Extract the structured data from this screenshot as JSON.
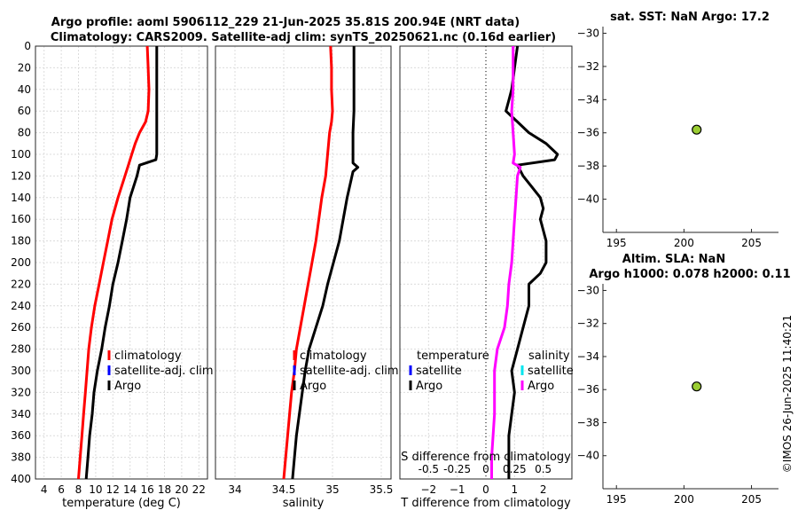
{
  "header": {
    "title_line1": "Argo profile: aoml 5906112_229 21-Jun-2025 35.81S 200.94E (NRT data)",
    "title_line2": "Climatology: CARS2009. Satellite-adj clim: synTS_20250621.nc (0.16d earlier)",
    "sst_title": "sat. SST: NaN Argo: 17.2",
    "sla_title1": "Altim. SLA: NaN",
    "sla_title2": "Argo h1000: 0.078 h2000: 0.11",
    "credit": "©IMOS 26-Jun-2025 11:40:21"
  },
  "colors": {
    "climatology": "#ff0000",
    "satellite": "#0000ff",
    "argo": "#000000",
    "salinity_diff": "#ff00ff",
    "salinity_sat": "#00e5ee",
    "marker": "#9acd32"
  },
  "chart_data": [
    {
      "type": "line",
      "id": "temperature",
      "xlabel": "temperature (deg C)",
      "xlim": [
        3,
        23
      ],
      "ylim": [
        400,
        0
      ],
      "xticks": [
        4,
        6,
        8,
        10,
        12,
        14,
        16,
        18,
        20,
        22
      ],
      "yticks": [
        0,
        20,
        40,
        60,
        80,
        100,
        120,
        140,
        160,
        180,
        200,
        220,
        240,
        260,
        280,
        300,
        320,
        340,
        360,
        380,
        400
      ],
      "legend": [
        "climatology",
        "satellite-adj. clim",
        "Argo"
      ],
      "series": [
        {
          "name": "climatology",
          "depth": [
            0,
            20,
            40,
            60,
            70,
            80,
            90,
            100,
            110,
            120,
            140,
            160,
            180,
            200,
            220,
            240,
            260,
            280,
            300,
            320,
            340,
            360,
            380,
            400
          ],
          "values": [
            16.0,
            16.1,
            16.2,
            16.1,
            15.8,
            15.1,
            14.6,
            14.2,
            13.8,
            13.4,
            12.6,
            11.9,
            11.4,
            10.9,
            10.4,
            9.9,
            9.5,
            9.2,
            9.0,
            8.8,
            8.6,
            8.4,
            8.2,
            8.0
          ]
        },
        {
          "name": "Argo",
          "depth": [
            0,
            20,
            40,
            60,
            80,
            100,
            105,
            110,
            120,
            140,
            160,
            180,
            200,
            220,
            240,
            260,
            280,
            300,
            320,
            340,
            360,
            380,
            400
          ],
          "values": [
            17.1,
            17.1,
            17.1,
            17.1,
            17.1,
            17.1,
            17.0,
            15.1,
            14.8,
            14.0,
            13.6,
            13.1,
            12.6,
            12.0,
            11.6,
            11.1,
            10.7,
            10.2,
            9.8,
            9.6,
            9.3,
            9.1,
            8.9
          ]
        }
      ]
    },
    {
      "type": "line",
      "id": "salinity",
      "xlabel": "salinity",
      "xlim": [
        33.8,
        35.6
      ],
      "ylim": [
        400,
        0
      ],
      "xticks": [
        34,
        34.5,
        35,
        35.5
      ],
      "xticklabels": [
        "34",
        "34.5",
        "35",
        "35.5"
      ],
      "legend": [
        "climatology",
        "satellite-adj. clim",
        "Argo"
      ],
      "series": [
        {
          "name": "climatology",
          "depth": [
            0,
            20,
            40,
            60,
            70,
            80,
            100,
            120,
            140,
            160,
            180,
            200,
            220,
            240,
            260,
            280,
            300,
            320,
            340,
            360,
            380,
            400
          ],
          "values": [
            34.98,
            34.99,
            34.99,
            35.0,
            34.99,
            34.97,
            34.95,
            34.93,
            34.89,
            34.86,
            34.83,
            34.79,
            34.75,
            34.71,
            34.67,
            34.63,
            34.61,
            34.58,
            34.56,
            34.54,
            34.52,
            34.5
          ]
        },
        {
          "name": "Argo",
          "depth": [
            0,
            20,
            40,
            60,
            80,
            100,
            108,
            112,
            116,
            120,
            140,
            160,
            180,
            200,
            220,
            240,
            260,
            280,
            300,
            320,
            340,
            360,
            380,
            400
          ],
          "values": [
            35.22,
            35.22,
            35.22,
            35.22,
            35.21,
            35.21,
            35.21,
            35.26,
            35.21,
            35.2,
            35.15,
            35.11,
            35.07,
            35.01,
            34.95,
            34.9,
            34.83,
            34.76,
            34.72,
            34.69,
            34.66,
            34.63,
            34.61,
            34.59
          ]
        }
      ]
    },
    {
      "type": "line",
      "id": "difference",
      "xlabel": "T difference from climatology",
      "xlabel_top": "S difference from climatology",
      "xlim": [
        -3,
        3
      ],
      "ylim": [
        400,
        0
      ],
      "xticks": [
        -2,
        -1,
        0,
        1,
        2
      ],
      "top_xtick_values": [
        -2,
        -1,
        0,
        1,
        2
      ],
      "top_xticklabels": [
        "-0.5",
        "-0.25",
        "0",
        "0.25",
        "0.5"
      ],
      "legend": [
        "temperature",
        "satellite",
        "Argo",
        "salinity",
        "satellite",
        "Argo"
      ],
      "series": [
        {
          "name": "temperature Argo",
          "depth": [
            0,
            20,
            40,
            50,
            60,
            70,
            80,
            90,
            100,
            105,
            110,
            120,
            130,
            140,
            150,
            160,
            180,
            200,
            210,
            220,
            240,
            260,
            280,
            300,
            320,
            340,
            360,
            380,
            400
          ],
          "values": [
            1.1,
            1.0,
            0.9,
            0.8,
            0.7,
            1.1,
            1.5,
            2.1,
            2.5,
            2.4,
            1.1,
            1.3,
            1.6,
            1.9,
            2.0,
            1.9,
            2.1,
            2.1,
            1.9,
            1.5,
            1.5,
            1.3,
            1.1,
            0.9,
            1.0,
            0.9,
            0.8,
            0.8,
            0.8
          ]
        },
        {
          "name": "salinity Argo",
          "depth": [
            0,
            20,
            40,
            60,
            80,
            100,
            108,
            112,
            120,
            140,
            160,
            180,
            200,
            220,
            240,
            260,
            280,
            300,
            320,
            340,
            360,
            380,
            400
          ],
          "values": [
            0.95,
            0.95,
            0.95,
            0.9,
            0.95,
            1.0,
            0.95,
            1.2,
            1.1,
            1.05,
            1.0,
            0.95,
            0.9,
            0.8,
            0.75,
            0.65,
            0.4,
            0.3,
            0.3,
            0.3,
            0.25,
            0.2,
            0.2
          ]
        }
      ]
    },
    {
      "type": "scatter",
      "id": "sst-map",
      "xlim": [
        194,
        207
      ],
      "ylim": [
        -42,
        -29.6
      ],
      "xticks": [
        195,
        200,
        205
      ],
      "yticks": [
        -30,
        -32,
        -34,
        -36,
        -38,
        -40
      ],
      "x": [
        200.94
      ],
      "y": [
        -35.81
      ]
    },
    {
      "type": "scatter",
      "id": "sla-map",
      "xlim": [
        194,
        207
      ],
      "ylim": [
        -42,
        -29.6
      ],
      "xticks": [
        195,
        200,
        205
      ],
      "yticks": [
        -30,
        -32,
        -34,
        -36,
        -38,
        -40
      ],
      "x": [
        200.94
      ],
      "y": [
        -35.81
      ]
    }
  ]
}
